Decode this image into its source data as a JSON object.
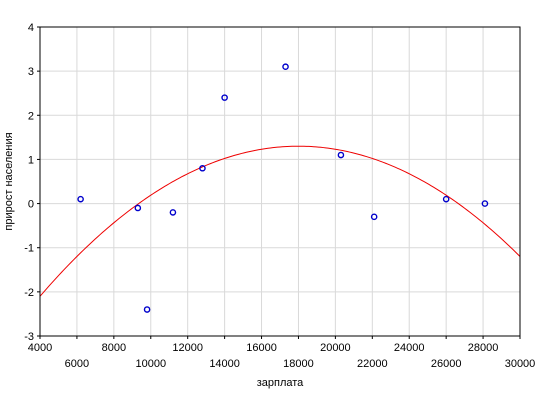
{
  "chart_data": {
    "type": "scatter",
    "xlabel": "зарплата",
    "ylabel": "прирост населения",
    "xlim": [
      4000,
      30000
    ],
    "ylim": [
      -3,
      4
    ],
    "x_ticks_upper": [
      "4000",
      "8000",
      "12000",
      "16000",
      "20000",
      "24000",
      "28000"
    ],
    "x_ticks_lower": [
      "6000",
      "10000",
      "14000",
      "18000",
      "22000",
      "26000",
      "30000"
    ],
    "y_ticks": [
      "4",
      "3",
      "2",
      "1",
      "0",
      "-1",
      "-2",
      "-3"
    ],
    "grid": true,
    "points": [
      {
        "x": 6200,
        "y": 0.1
      },
      {
        "x": 9300,
        "y": -0.1
      },
      {
        "x": 9800,
        "y": -2.4
      },
      {
        "x": 11200,
        "y": -0.2
      },
      {
        "x": 12800,
        "y": 0.8
      },
      {
        "x": 14000,
        "y": 2.4
      },
      {
        "x": 17300,
        "y": 3.1
      },
      {
        "x": 20300,
        "y": 1.1
      },
      {
        "x": 22100,
        "y": -0.3
      },
      {
        "x": 26000,
        "y": 0.1
      },
      {
        "x": 28100,
        "y": 0.0
      }
    ],
    "fit_curve": {
      "type": "quadratic",
      "vertex": {
        "x": 18000,
        "y": 1.3
      },
      "a": -1.735e-08
    },
    "colors": {
      "points": "#0000cc",
      "curve": "#ee0000",
      "grid": "#d9d9d9",
      "axis": "#000000"
    }
  }
}
